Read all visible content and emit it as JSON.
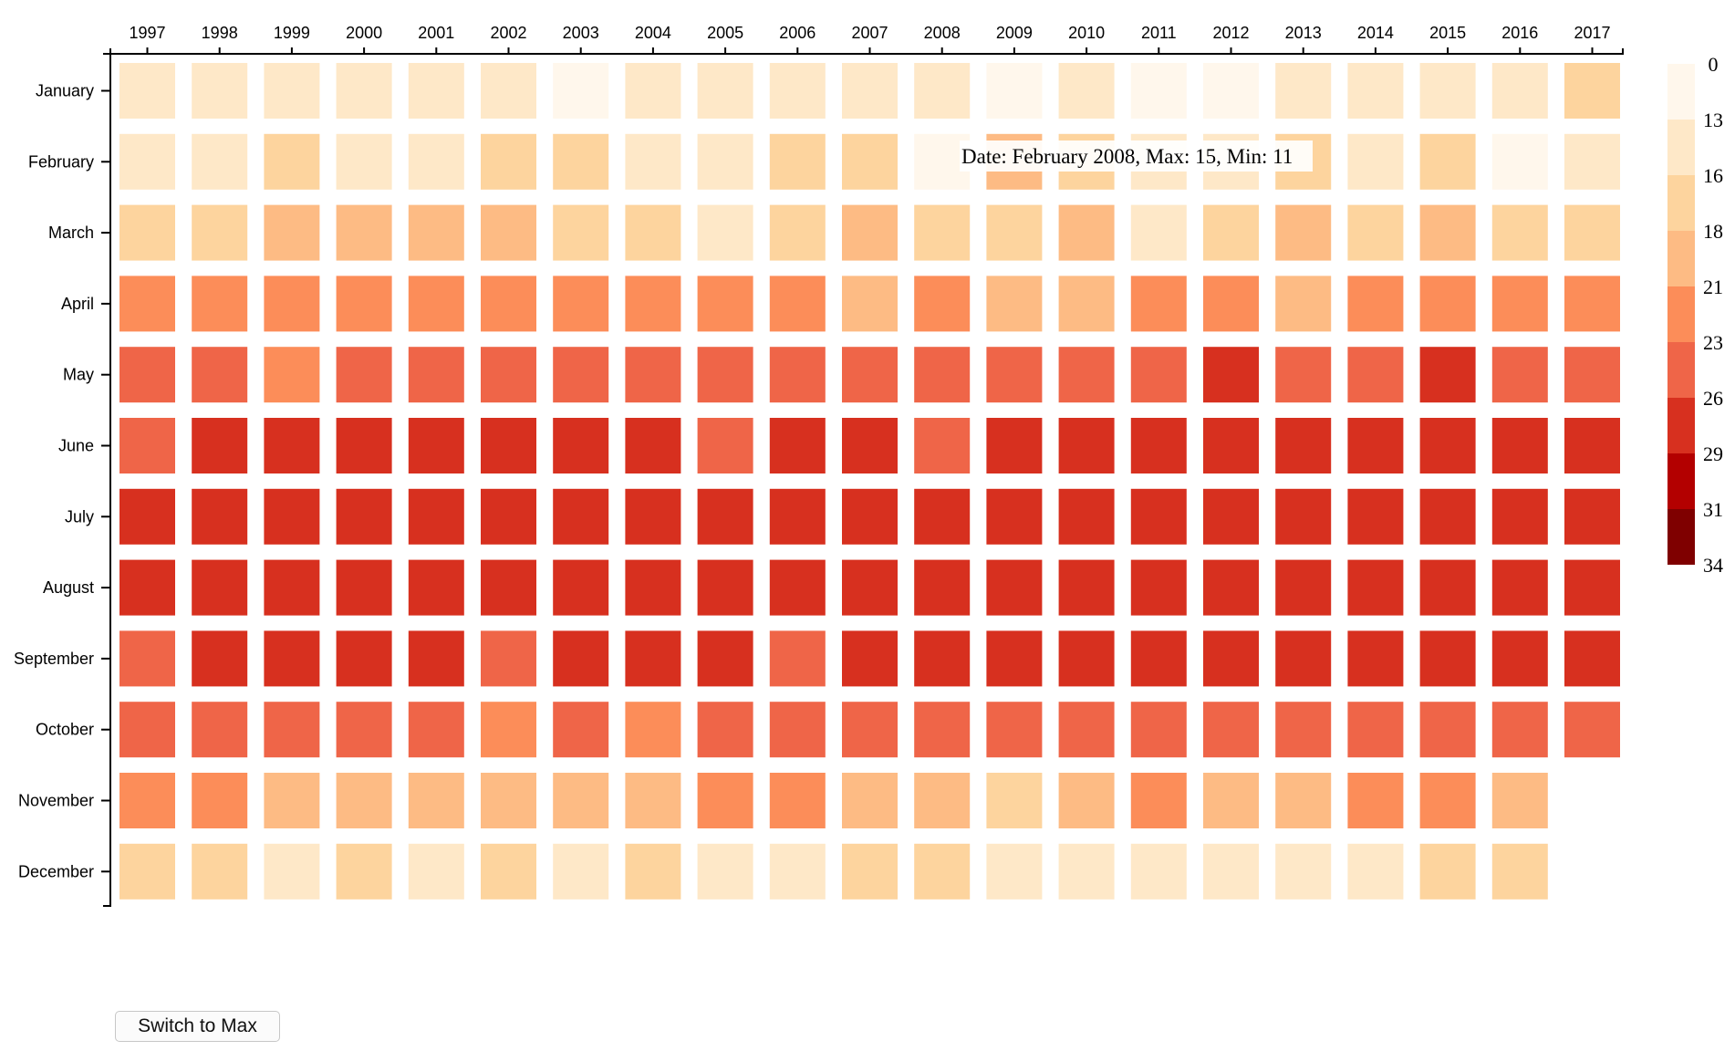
{
  "chart_data": {
    "type": "heatmap",
    "years": [
      "1997",
      "1998",
      "1999",
      "2000",
      "2001",
      "2002",
      "2003",
      "2004",
      "2005",
      "2006",
      "2007",
      "2008",
      "2009",
      "2010",
      "2011",
      "2012",
      "2013",
      "2014",
      "2015",
      "2016",
      "2017"
    ],
    "months": [
      "January",
      "February",
      "March",
      "April",
      "May",
      "June",
      "July",
      "August",
      "September",
      "October",
      "November",
      "December"
    ],
    "legend_ticks": [
      "0",
      "13",
      "16",
      "18",
      "21",
      "23",
      "26",
      "29",
      "31",
      "34"
    ],
    "legend_colors": [
      "#fff7ec",
      "#fee8c8",
      "#fdd49e",
      "#fdbb84",
      "#fc8d59",
      "#ef6548",
      "#d7301f",
      "#b30000",
      "#7f0000"
    ],
    "values": [
      [
        14,
        14,
        14,
        14,
        14,
        14,
        12,
        14,
        14,
        14,
        14,
        14,
        12,
        14,
        12,
        12,
        14,
        14,
        14,
        14,
        17
      ],
      [
        14,
        14,
        17,
        14,
        14,
        17,
        17,
        14,
        14,
        17,
        17,
        12,
        19,
        17,
        14,
        14,
        17,
        14,
        17,
        12,
        14
      ],
      [
        17,
        17,
        19,
        19,
        19,
        19,
        17,
        17,
        14,
        17,
        19,
        17,
        17,
        19,
        14,
        17,
        19,
        17,
        19,
        17,
        17
      ],
      [
        22,
        22,
        22,
        22,
        22,
        22,
        22,
        22,
        22,
        22,
        19,
        22,
        19,
        19,
        22,
        22,
        19,
        22,
        22,
        22,
        22
      ],
      [
        24,
        24,
        22,
        24,
        24,
        24,
        24,
        24,
        24,
        24,
        24,
        24,
        24,
        24,
        24,
        27,
        24,
        24,
        27,
        24,
        24
      ],
      [
        24,
        27,
        27,
        27,
        27,
        27,
        27,
        27,
        24,
        27,
        27,
        24,
        27,
        27,
        27,
        27,
        27,
        27,
        27,
        27,
        27
      ],
      [
        27,
        27,
        27,
        27,
        27,
        27,
        27,
        27,
        27,
        27,
        27,
        27,
        27,
        27,
        27,
        27,
        27,
        27,
        27,
        27,
        27
      ],
      [
        27,
        27,
        27,
        27,
        27,
        27,
        27,
        27,
        27,
        27,
        27,
        27,
        27,
        27,
        27,
        27,
        27,
        27,
        27,
        27,
        27
      ],
      [
        24,
        27,
        27,
        27,
        27,
        24,
        27,
        27,
        27,
        24,
        27,
        27,
        27,
        27,
        27,
        27,
        27,
        27,
        27,
        27,
        27
      ],
      [
        24,
        24,
        24,
        24,
        24,
        22,
        24,
        22,
        24,
        24,
        24,
        24,
        24,
        24,
        24,
        24,
        24,
        24,
        24,
        24,
        24
      ],
      [
        22,
        22,
        19,
        19,
        19,
        19,
        19,
        19,
        22,
        22,
        19,
        19,
        17,
        19,
        22,
        19,
        19,
        22,
        22,
        19,
        null
      ],
      [
        17,
        17,
        14,
        17,
        14,
        17,
        14,
        17,
        14,
        14,
        17,
        17,
        14,
        14,
        14,
        14,
        14,
        14,
        17,
        17,
        null
      ]
    ],
    "tooltip": "Date: February 2008, Max: 15, Min: 11"
  },
  "controls": {
    "switch_label": "Switch to Max"
  }
}
